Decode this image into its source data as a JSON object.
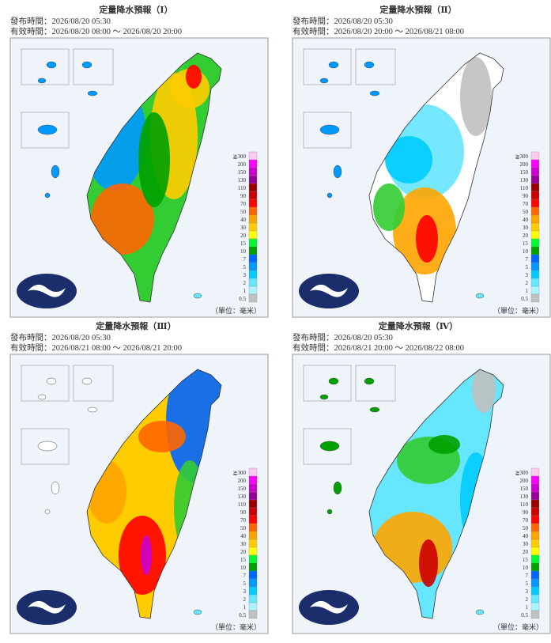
{
  "panels": [
    {
      "title": "定量降水預報（Ⅰ）",
      "issued": "發布時間：2026/08/20 05:30",
      "valid": "有效時間：2026/08/20 08:00 ～ 2026/08/20 20:00",
      "unit": "（單位：毫米）"
    },
    {
      "title": "定量降水預報（Ⅱ）",
      "issued": "發布時間：2026/08/20 05:30",
      "valid": "有效時間：2026/08/20 20:00 ～ 2026/08/21 08:00",
      "unit": "（單位：毫米）"
    },
    {
      "title": "定量降水預報（Ⅲ）",
      "issued": "發布時間：2026/08/20 05:30",
      "valid": "有效時間：2026/08/21 08:00 ～ 2026/08/21 20:00",
      "unit": "（單位：毫米）"
    },
    {
      "title": "定量降水預報（Ⅳ）",
      "issued": "發布時間：2026/08/20 05:30",
      "valid": "有效時間：2026/08/21 20:00 ～ 2026/08/22 08:00",
      "unit": "（單位：毫米）"
    }
  ],
  "legend": {
    "labels": [
      "≧300",
      "200",
      "150",
      "130",
      "110",
      "90",
      "70",
      "50",
      "40",
      "30",
      "20",
      "15",
      "10",
      "7",
      "5",
      "3",
      "2",
      "1",
      "0.5"
    ],
    "colors": [
      "#fdc9f1",
      "#fd00fd",
      "#cc00cc",
      "#990099",
      "#990000",
      "#cc0000",
      "#fe0000",
      "#ff6600",
      "#ffa500",
      "#ffcc00",
      "#ffff00",
      "#00fb30",
      "#00a000",
      "#0066ff",
      "#0099ff",
      "#00ccff",
      "#66e6ff",
      "#a8f4ff",
      "#c0c0c0"
    ]
  }
}
